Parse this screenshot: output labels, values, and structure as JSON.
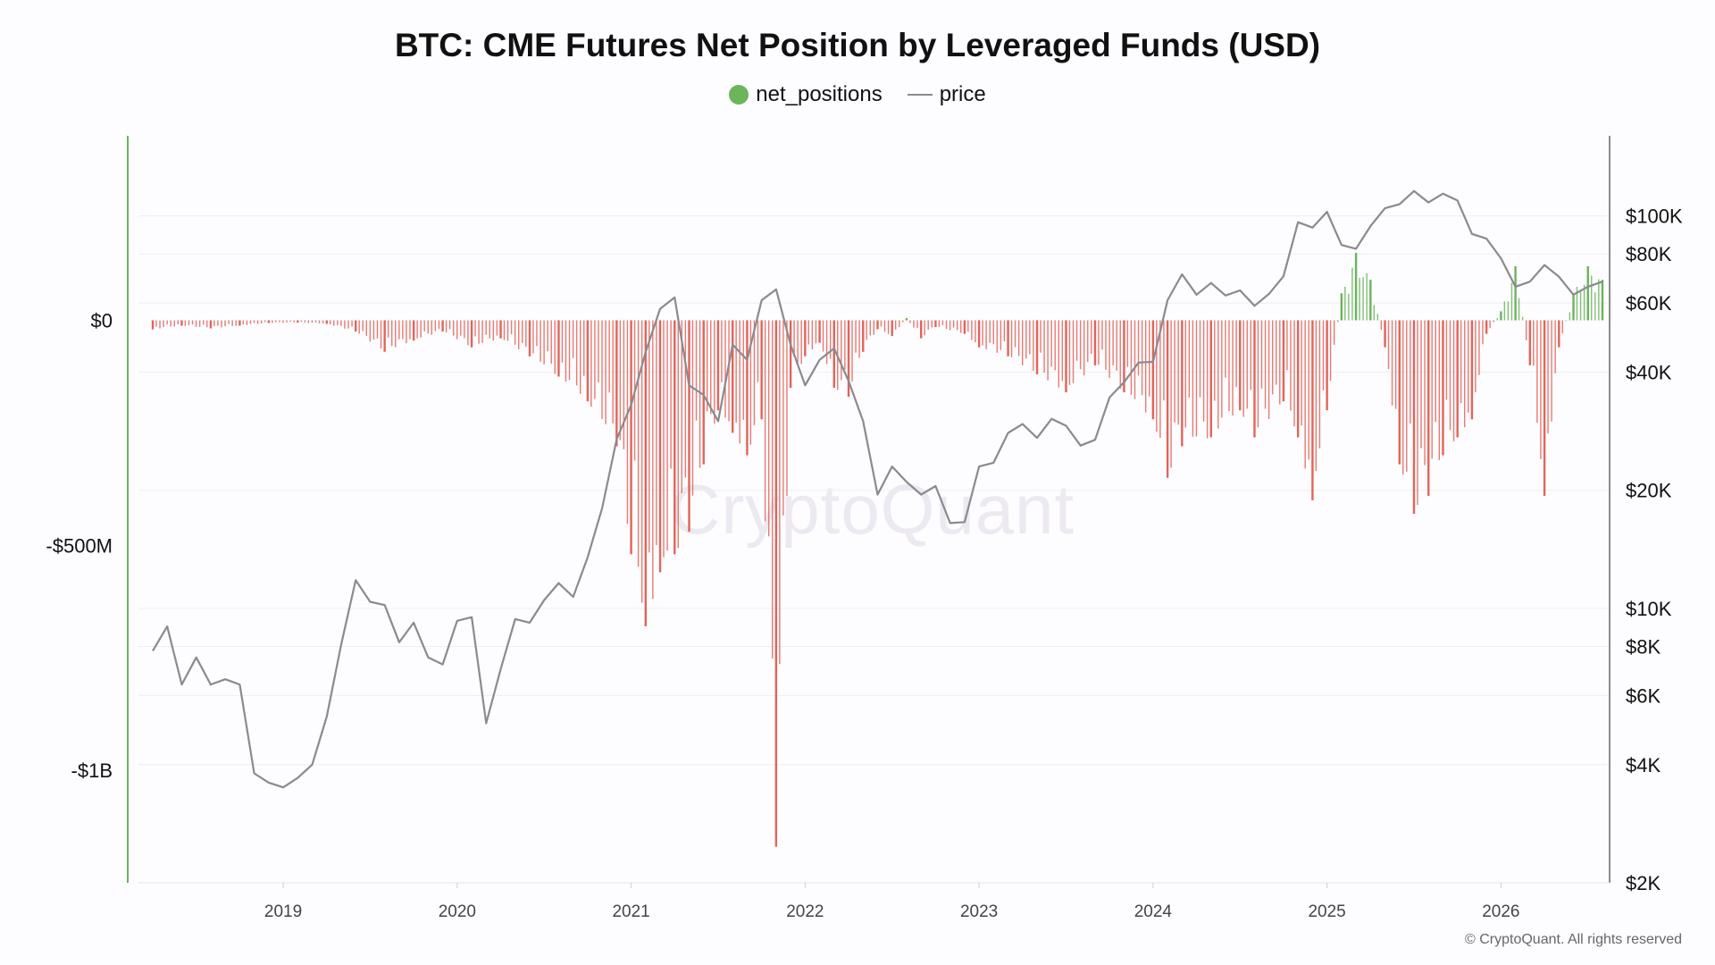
{
  "chart_data": {
    "type": "bar",
    "title": "BTC: CME Futures Net Position by Leveraged Funds (USD)",
    "legend": [
      {
        "name": "net_positions",
        "color": "#6bb55b",
        "marker": "dot"
      },
      {
        "name": "price",
        "color": "#8a8a8f",
        "marker": "line"
      }
    ],
    "legend_placement": "top-center",
    "grid": true,
    "x_ticks": [
      "2019",
      "2020",
      "2021",
      "2022",
      "2023",
      "2024",
      "2025",
      "2026"
    ],
    "x_range": [
      "2018-04",
      "2026-08"
    ],
    "left_axis": {
      "ticks": [
        "$0",
        "-$500M",
        "-$1B"
      ],
      "tick_values": [
        0,
        -500000000,
        -1000000000
      ],
      "range": [
        -1250000000,
        410000000
      ]
    },
    "right_axis": {
      "scale": "log",
      "ticks": [
        "$100K",
        "$80K",
        "$60K",
        "$40K",
        "$20K",
        "$10K",
        "$8K",
        "$6K",
        "$4K",
        "$2K"
      ],
      "tick_values": [
        100000,
        80000,
        60000,
        40000,
        20000,
        10000,
        8000,
        6000,
        4000,
        2000
      ],
      "range": [
        2000,
        160000
      ]
    },
    "series": [
      {
        "name": "net_positions",
        "color_positive": "#6bb55b",
        "color_negative": "#e0655a",
        "unit": "USD (millions)",
        "points": [
          [
            "2018-04",
            -20
          ],
          [
            "2018-06",
            -12
          ],
          [
            "2018-08",
            -18
          ],
          [
            "2018-10",
            -12
          ],
          [
            "2018-12",
            -6
          ],
          [
            "2019-02",
            -5
          ],
          [
            "2019-04",
            -8
          ],
          [
            "2019-06",
            -25
          ],
          [
            "2019-08",
            -70
          ],
          [
            "2019-10",
            -45
          ],
          [
            "2019-12",
            -25
          ],
          [
            "2020-02",
            -60
          ],
          [
            "2020-04",
            -40
          ],
          [
            "2020-06",
            -80
          ],
          [
            "2020-08",
            -125
          ],
          [
            "2020-10",
            -180
          ],
          [
            "2020-12",
            -280
          ],
          [
            "2021-01",
            -520
          ],
          [
            "2021-02",
            -680
          ],
          [
            "2021-03",
            -560
          ],
          [
            "2021-04",
            -520
          ],
          [
            "2021-05",
            -470
          ],
          [
            "2021-06",
            -320
          ],
          [
            "2021-07",
            -200
          ],
          [
            "2021-08",
            -250
          ],
          [
            "2021-09",
            -300
          ],
          [
            "2021-10",
            -220
          ],
          [
            "2021-11",
            -1170
          ],
          [
            "2021-12",
            -150
          ],
          [
            "2022-01",
            -80
          ],
          [
            "2022-02",
            -50
          ],
          [
            "2022-03",
            -150
          ],
          [
            "2022-04",
            -170
          ],
          [
            "2022-05",
            -70
          ],
          [
            "2022-06",
            -20
          ],
          [
            "2022-07",
            -35
          ],
          [
            "2022-08",
            5
          ],
          [
            "2022-09",
            -40
          ],
          [
            "2022-10",
            -15
          ],
          [
            "2022-12",
            -30
          ],
          [
            "2023-01",
            -60
          ],
          [
            "2023-03",
            -80
          ],
          [
            "2023-05",
            -120
          ],
          [
            "2023-07",
            -160
          ],
          [
            "2023-09",
            -100
          ],
          [
            "2023-11",
            -160
          ],
          [
            "2024-01",
            -220
          ],
          [
            "2024-02",
            -350
          ],
          [
            "2024-03",
            -280
          ],
          [
            "2024-05",
            -260
          ],
          [
            "2024-07",
            -200
          ],
          [
            "2024-08",
            -260
          ],
          [
            "2024-10",
            -180
          ],
          [
            "2024-11",
            -260
          ],
          [
            "2024-12",
            -400
          ],
          [
            "2025-01",
            -200
          ],
          [
            "2025-02",
            60
          ],
          [
            "2025-03",
            150
          ],
          [
            "2025-04",
            90
          ],
          [
            "2025-05",
            -60
          ],
          [
            "2025-06",
            -320
          ],
          [
            "2025-07",
            -430
          ],
          [
            "2025-08",
            -390
          ],
          [
            "2025-09",
            -300
          ],
          [
            "2025-10",
            -260
          ],
          [
            "2025-11",
            -220
          ],
          [
            "2025-12",
            -30
          ],
          [
            "2026-01",
            20
          ],
          [
            "2026-02",
            120
          ],
          [
            "2026-03",
            -100
          ],
          [
            "2026-04",
            -390
          ],
          [
            "2026-05",
            -60
          ],
          [
            "2026-06",
            60
          ],
          [
            "2026-07",
            120
          ],
          [
            "2026-08",
            90
          ]
        ]
      },
      {
        "name": "price",
        "color": "#8a8a8f",
        "unit": "USD",
        "points": [
          [
            "2018-04",
            7800
          ],
          [
            "2018-05",
            9000
          ],
          [
            "2018-06",
            6400
          ],
          [
            "2018-07",
            7500
          ],
          [
            "2018-08",
            6400
          ],
          [
            "2018-09",
            6600
          ],
          [
            "2018-10",
            6400
          ],
          [
            "2018-11",
            3800
          ],
          [
            "2018-12",
            3600
          ],
          [
            "2019-01",
            3500
          ],
          [
            "2019-02",
            3700
          ],
          [
            "2019-03",
            4000
          ],
          [
            "2019-04",
            5300
          ],
          [
            "2019-05",
            8100
          ],
          [
            "2019-06",
            11800
          ],
          [
            "2019-07",
            10400
          ],
          [
            "2019-08",
            10200
          ],
          [
            "2019-09",
            8200
          ],
          [
            "2019-10",
            9200
          ],
          [
            "2019-11",
            7500
          ],
          [
            "2019-12",
            7200
          ],
          [
            "2020-01",
            9300
          ],
          [
            "2020-02",
            9500
          ],
          [
            "2020-03",
            5100
          ],
          [
            "2020-04",
            7000
          ],
          [
            "2020-05",
            9400
          ],
          [
            "2020-06",
            9200
          ],
          [
            "2020-07",
            10500
          ],
          [
            "2020-08",
            11600
          ],
          [
            "2020-09",
            10700
          ],
          [
            "2020-10",
            13500
          ],
          [
            "2020-11",
            18000
          ],
          [
            "2020-12",
            27000
          ],
          [
            "2021-01",
            33000
          ],
          [
            "2021-02",
            45000
          ],
          [
            "2021-03",
            58000
          ],
          [
            "2021-04",
            62000
          ],
          [
            "2021-05",
            37000
          ],
          [
            "2021-06",
            35000
          ],
          [
            "2021-07",
            30000
          ],
          [
            "2021-08",
            47000
          ],
          [
            "2021-09",
            43000
          ],
          [
            "2021-10",
            61000
          ],
          [
            "2021-11",
            65000
          ],
          [
            "2021-12",
            47000
          ],
          [
            "2022-01",
            37000
          ],
          [
            "2022-02",
            43000
          ],
          [
            "2022-03",
            46000
          ],
          [
            "2022-04",
            38000
          ],
          [
            "2022-05",
            30000
          ],
          [
            "2022-06",
            19500
          ],
          [
            "2022-07",
            23000
          ],
          [
            "2022-08",
            21000
          ],
          [
            "2022-09",
            19500
          ],
          [
            "2022-10",
            20500
          ],
          [
            "2022-11",
            16500
          ],
          [
            "2022-12",
            16600
          ],
          [
            "2023-01",
            23000
          ],
          [
            "2023-02",
            23500
          ],
          [
            "2023-03",
            28000
          ],
          [
            "2023-04",
            29500
          ],
          [
            "2023-05",
            27200
          ],
          [
            "2023-06",
            30400
          ],
          [
            "2023-07",
            29200
          ],
          [
            "2023-08",
            26000
          ],
          [
            "2023-09",
            26900
          ],
          [
            "2023-10",
            34500
          ],
          [
            "2023-11",
            37700
          ],
          [
            "2023-12",
            42300
          ],
          [
            "2024-01",
            42500
          ],
          [
            "2024-02",
            61000
          ],
          [
            "2024-03",
            71000
          ],
          [
            "2024-04",
            63000
          ],
          [
            "2024-05",
            67500
          ],
          [
            "2024-06",
            62700
          ],
          [
            "2024-07",
            64600
          ],
          [
            "2024-08",
            59000
          ],
          [
            "2024-09",
            63300
          ],
          [
            "2024-10",
            70200
          ],
          [
            "2024-11",
            96400
          ],
          [
            "2024-12",
            93400
          ],
          [
            "2025-01",
            102400
          ],
          [
            "2025-02",
            84300
          ],
          [
            "2025-03",
            82500
          ],
          [
            "2025-04",
            94200
          ],
          [
            "2025-05",
            104600
          ],
          [
            "2025-06",
            107100
          ],
          [
            "2025-07",
            115700
          ],
          [
            "2025-08",
            108200
          ],
          [
            "2025-09",
            114000
          ],
          [
            "2025-10",
            109500
          ],
          [
            "2025-11",
            90000
          ],
          [
            "2025-12",
            87500
          ],
          [
            "2026-01",
            78000
          ],
          [
            "2026-02",
            66000
          ],
          [
            "2026-03",
            68000
          ],
          [
            "2026-04",
            75000
          ],
          [
            "2026-05",
            70000
          ],
          [
            "2026-06",
            63000
          ],
          [
            "2026-07",
            66000
          ],
          [
            "2026-08",
            68000
          ]
        ]
      }
    ],
    "watermark": "CryptoQuant",
    "copyright": "© CryptoQuant. All rights reserved"
  }
}
